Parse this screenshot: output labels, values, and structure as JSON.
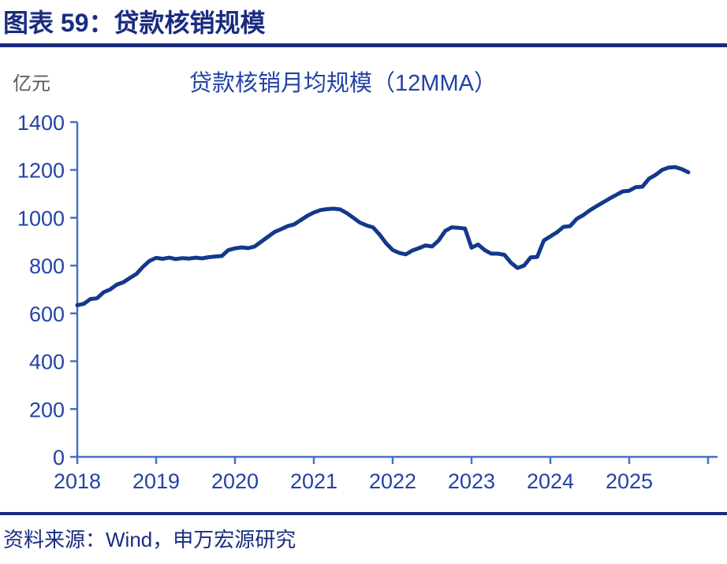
{
  "header": {
    "title": "图表 59：贷款核销规模"
  },
  "chart": {
    "unit": "亿元",
    "title": "贷款核销月均规模（12MMA）"
  },
  "chart_data": {
    "type": "line",
    "title": "贷款核销月均规模（12MMA）",
    "ylabel": "亿元",
    "xlabel": "",
    "frequency": "monthly",
    "start_month": "2018-01",
    "end_month": "2025-10",
    "values": [
      634,
      640,
      660,
      663,
      688,
      700,
      720,
      730,
      748,
      765,
      795,
      820,
      832,
      828,
      833,
      827,
      831,
      829,
      833,
      830,
      835,
      838,
      840,
      865,
      872,
      876,
      873,
      880,
      900,
      920,
      940,
      952,
      965,
      972,
      990,
      1008,
      1022,
      1032,
      1036,
      1038,
      1035,
      1020,
      1000,
      980,
      968,
      960,
      930,
      893,
      865,
      853,
      847,
      863,
      873,
      884,
      880,
      905,
      945,
      960,
      958,
      955,
      875,
      888,
      865,
      850,
      850,
      845,
      812,
      790,
      800,
      834,
      836,
      905,
      922,
      939,
      962,
      965,
      995,
      1011,
      1031,
      1048,
      1064,
      1080,
      1095,
      1110,
      1113,
      1128,
      1130,
      1163,
      1179,
      1200,
      1210,
      1212,
      1203,
      1190
    ],
    "ylim": [
      0,
      1400
    ],
    "yticks": [
      0,
      200,
      400,
      600,
      800,
      1000,
      1200,
      1400
    ],
    "xticks": [
      "2018",
      "2019",
      "2020",
      "2021",
      "2022",
      "2023",
      "2024",
      "2025"
    ],
    "extra_unlabeled_x_ticks": 1,
    "grid": false,
    "legend": "none",
    "line_color": "#12398c",
    "axis_color": "#4472c4",
    "label_color": "#2343a6"
  },
  "source": {
    "text": "资料来源：Wind，申万宏源研究"
  }
}
